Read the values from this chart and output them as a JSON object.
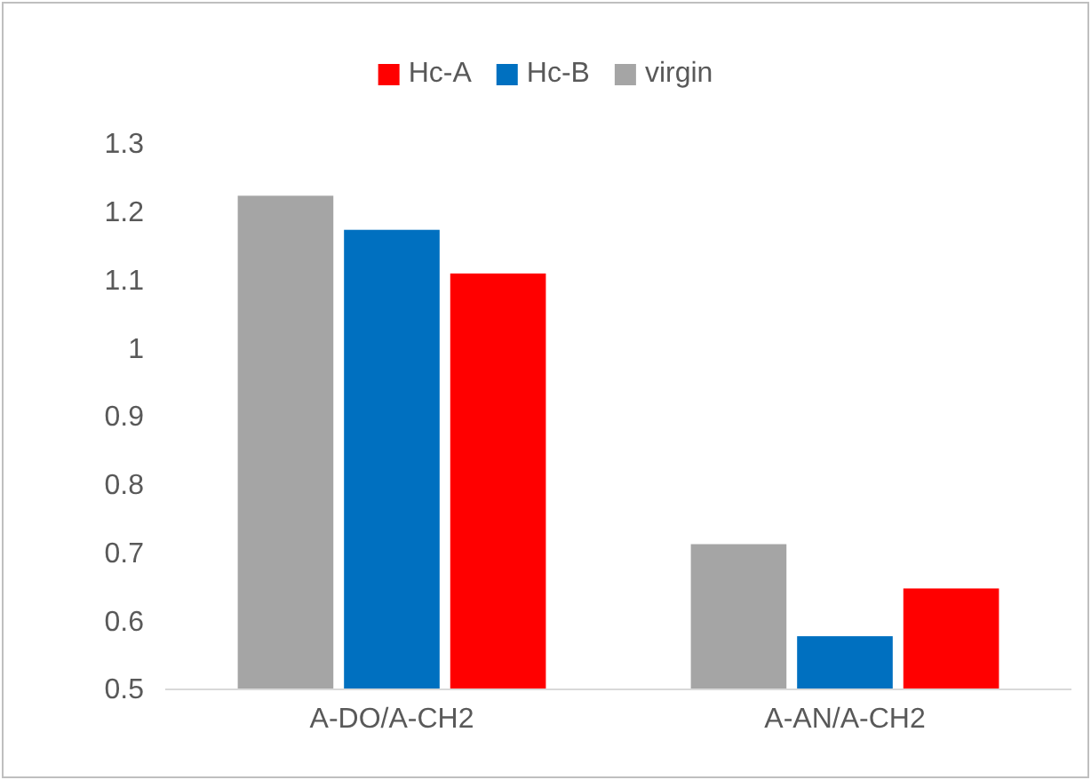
{
  "chart_data": {
    "type": "bar",
    "categories": [
      "A-DO/A-CH2",
      "A-AN/A-CH2"
    ],
    "series": [
      {
        "name": "virgin",
        "color": "#a5a5a5",
        "values": [
          1.224,
          0.713
        ]
      },
      {
        "name": "Hc-B",
        "color": "#0070c0",
        "values": [
          1.174,
          0.578
        ]
      },
      {
        "name": "Hc-A",
        "color": "#ff0000",
        "values": [
          1.11,
          0.648
        ]
      }
    ],
    "ylim": [
      0.5,
      1.3
    ],
    "yticks": [
      0.5,
      0.6,
      0.7,
      0.8,
      0.9,
      1,
      1.1,
      1.2,
      1.3
    ],
    "grid": false,
    "legend": "top"
  }
}
